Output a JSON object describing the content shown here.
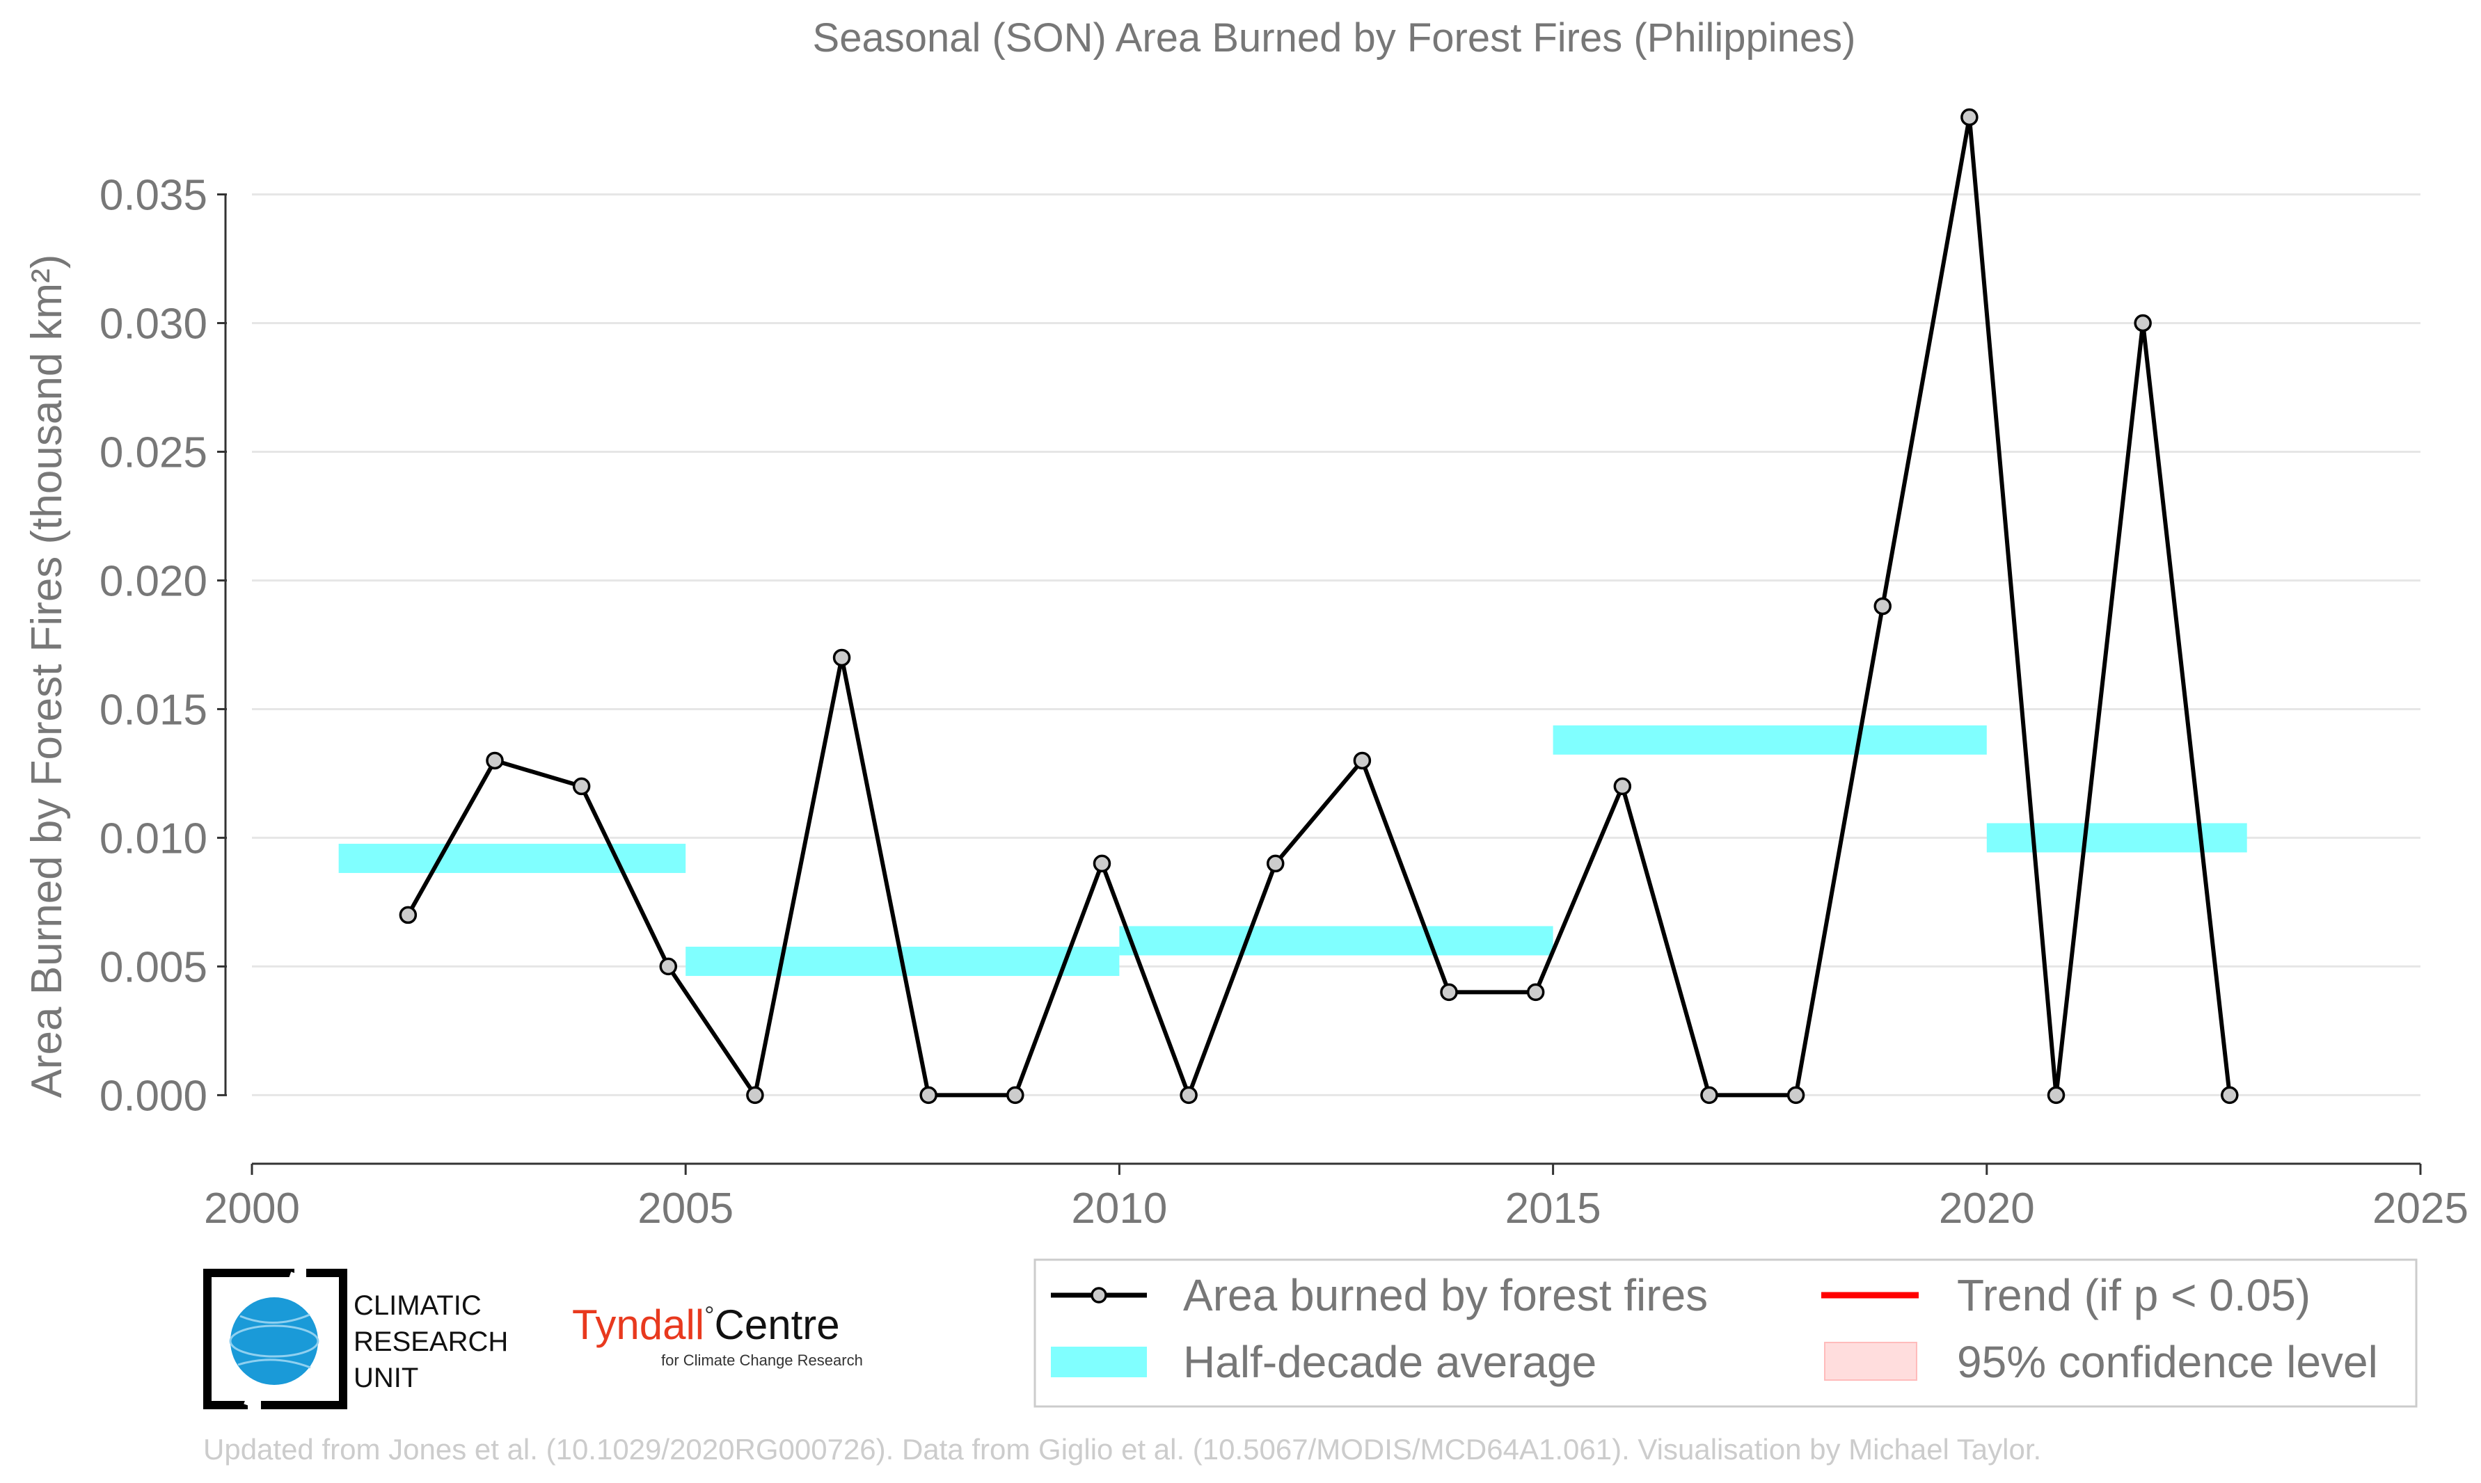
{
  "chart_data": {
    "type": "line",
    "title": "Seasonal (SON) Area Burned by Forest Fires (Philippines)",
    "ylabel": "Area Burned by Forest Fires (thousand km²)",
    "xlabel": "",
    "xlim": [
      2000,
      2025
    ],
    "ylim": [
      -0.0028,
      0.0385
    ],
    "x_ticks": [
      2000,
      2005,
      2010,
      2015,
      2020,
      2025
    ],
    "y_ticks": [
      0.0,
      0.005,
      0.01,
      0.015,
      0.02,
      0.025,
      0.03,
      0.035
    ],
    "y_tick_labels": [
      "0.000",
      "0.005",
      "0.010",
      "0.015",
      "0.020",
      "0.025",
      "0.030",
      "0.035"
    ],
    "grid": "horizontal",
    "series": [
      {
        "name": "Area burned by forest fires",
        "color": "#000000",
        "marker_color": "#cccccc",
        "x": [
          2001.8,
          2002.8,
          2003.8,
          2004.8,
          2005.8,
          2006.8,
          2007.8,
          2008.8,
          2009.8,
          2010.8,
          2011.8,
          2012.8,
          2013.8,
          2014.8,
          2015.8,
          2016.8,
          2017.8,
          2018.8,
          2019.8,
          2020.8,
          2021.8,
          2022.8
        ],
        "values": [
          0.007,
          0.013,
          0.012,
          0.005,
          0.0,
          0.017,
          0.0,
          0.0,
          0.009,
          0.0,
          0.009,
          0.013,
          0.004,
          0.004,
          0.012,
          0.0,
          0.0,
          0.019,
          0.038,
          0.0,
          0.03,
          0.0
        ]
      }
    ],
    "half_decade_average": {
      "name": "Half-decade average",
      "color": "#80ffff",
      "segments": [
        {
          "start": 2001,
          "end": 2005,
          "value": 0.0092
        },
        {
          "start": 2005,
          "end": 2010,
          "value": 0.0052
        },
        {
          "start": 2010,
          "end": 2015,
          "value": 0.006
        },
        {
          "start": 2015,
          "end": 2020,
          "value": 0.0138
        },
        {
          "start": 2020,
          "end": 2023,
          "value": 0.01
        }
      ]
    },
    "legend": {
      "placement": "bottom-right",
      "entries": [
        {
          "label": "Area burned by forest fires",
          "kind": "line-marker",
          "color": "#000000"
        },
        {
          "label": "Trend (if p < 0.05)",
          "kind": "line",
          "color": "#ff0000"
        },
        {
          "label": "Half-decade average",
          "kind": "band",
          "color": "#80ffff"
        },
        {
          "label": "95% confidence level",
          "kind": "patch",
          "color": "#ffdddd"
        }
      ]
    },
    "credit": "Updated from Jones et al. (10.1029/2020RG000726). Data from Giglio et al. (10.5067/MODIS/MCD64A1.061). Visualisation by Michael Taylor."
  },
  "logos": {
    "cru": {
      "line1": "CLIMATIC",
      "line2": "RESEARCH",
      "line3": "UNIT",
      "icon": "globe-icon"
    },
    "tyndall": {
      "name": "Tyndall",
      "degree": "°",
      "centre": "Centre",
      "subtitle": "for Climate Change Research"
    }
  }
}
